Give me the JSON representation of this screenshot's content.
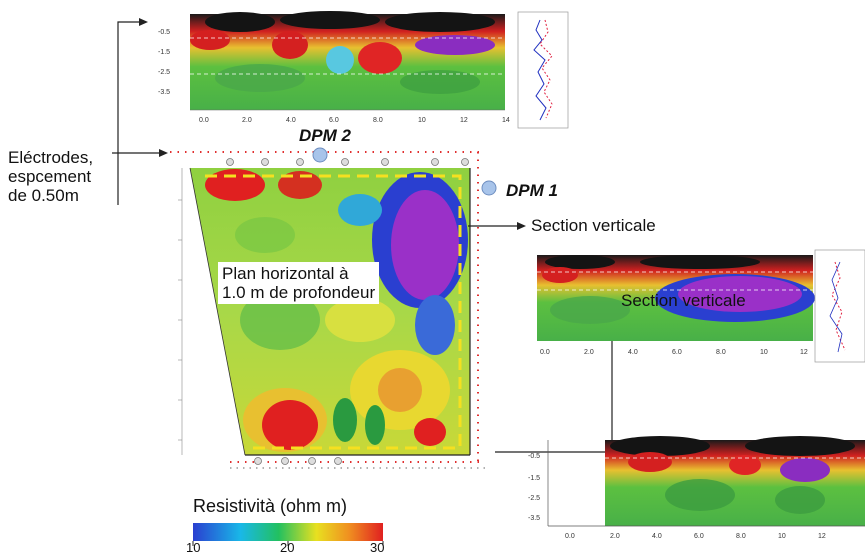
{
  "labels": {
    "electrodes": [
      "Eléctrodes,",
      "espcement",
      "de 0.50m"
    ],
    "dpm2": "DPM 2",
    "dpm1": "DPM 1",
    "section_vertical_1": "Section verticale",
    "section_vertical_2": "Section verticale",
    "plan_horizontal": [
      "Plan horizontal à",
      "1.0 m de profondeur"
    ]
  },
  "colorbar": {
    "title": "Resistività (ohm m)",
    "ticks": [
      "10",
      "20",
      "30"
    ],
    "colors": [
      "#2a3fd0",
      "#19b8e8",
      "#22c060",
      "#e8e020",
      "#f09020",
      "#e02020"
    ]
  },
  "top_section": {
    "x_ticks": [
      "0.0",
      "2.0",
      "4.0",
      "6.0",
      "8.0",
      "10",
      "12",
      "14"
    ],
    "y_ticks": [
      "-0.5",
      "-1.5",
      "-2.5",
      "-3.5"
    ]
  },
  "mid_section": {
    "x_ticks": [
      "0.0",
      "2.0",
      "4.0",
      "6.0",
      "8.0",
      "10",
      "12"
    ]
  },
  "bottom_section": {
    "x_ticks": [
      "0.0",
      "2.0",
      "4.0",
      "6.0",
      "8.0",
      "10",
      "12"
    ],
    "y_ticks": [
      "-0.5",
      "-1.5",
      "-2.5",
      "-3.5"
    ]
  }
}
